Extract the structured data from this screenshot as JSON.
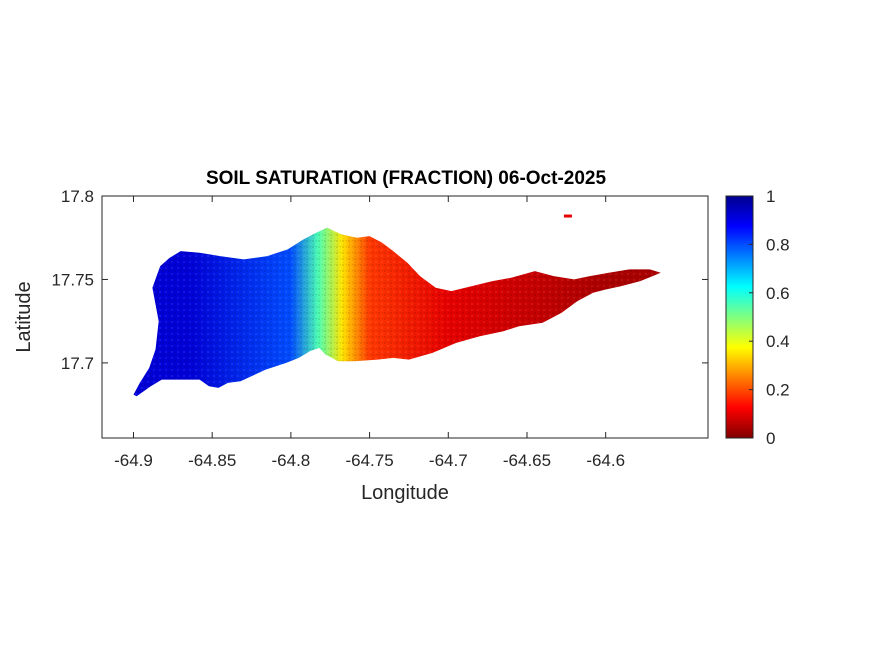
{
  "map": {
    "title": "SOIL SATURATION (FRACTION) 06-Oct-2025",
    "xlabel": "Longitude",
    "ylabel": "Latitude",
    "x_range": [
      -64.92,
      -64.535
    ],
    "y_range": [
      17.655,
      17.8
    ],
    "x_ticks": [
      {
        "value": -64.9,
        "label": "-64.9"
      },
      {
        "value": -64.85,
        "label": "-64.85"
      },
      {
        "value": -64.8,
        "label": "-64.8"
      },
      {
        "value": -64.75,
        "label": "-64.75"
      },
      {
        "value": -64.7,
        "label": "-64.7"
      },
      {
        "value": -64.65,
        "label": "-64.65"
      },
      {
        "value": -64.6,
        "label": "-64.6"
      }
    ],
    "y_ticks": [
      {
        "value": 17.7,
        "label": "17.7"
      },
      {
        "value": 17.75,
        "label": "17.75"
      },
      {
        "value": 17.8,
        "label": "17.8"
      }
    ],
    "colormap": "jet",
    "colorbar": {
      "range": [
        0,
        1
      ],
      "ticks": [
        {
          "value": 0,
          "label": "0"
        },
        {
          "value": 0.2,
          "label": "0.2"
        },
        {
          "value": 0.4,
          "label": "0.4"
        },
        {
          "value": 0.6,
          "label": "0.6"
        },
        {
          "value": 0.8,
          "label": "0.8"
        },
        {
          "value": 1,
          "label": "1"
        }
      ]
    },
    "island_outline_lonlat": [
      [
        -64.898,
        17.68
      ],
      [
        -64.889,
        17.686
      ],
      [
        -64.882,
        17.69
      ],
      [
        -64.858,
        17.69
      ],
      [
        -64.852,
        17.686
      ],
      [
        -64.846,
        17.685
      ],
      [
        -64.84,
        17.688
      ],
      [
        -64.832,
        17.689
      ],
      [
        -64.816,
        17.696
      ],
      [
        -64.803,
        17.7
      ],
      [
        -64.795,
        17.703
      ],
      [
        -64.788,
        17.707
      ],
      [
        -64.782,
        17.709
      ],
      [
        -64.778,
        17.705
      ],
      [
        -64.774,
        17.703
      ],
      [
        -64.77,
        17.701
      ],
      [
        -64.76,
        17.701
      ],
      [
        -64.745,
        17.702
      ],
      [
        -64.735,
        17.703
      ],
      [
        -64.725,
        17.702
      ],
      [
        -64.71,
        17.706
      ],
      [
        -64.695,
        17.712
      ],
      [
        -64.68,
        17.716
      ],
      [
        -64.665,
        17.719
      ],
      [
        -64.655,
        17.722
      ],
      [
        -64.64,
        17.724
      ],
      [
        -64.628,
        17.73
      ],
      [
        -64.618,
        17.737
      ],
      [
        -64.608,
        17.742
      ],
      [
        -64.6,
        17.744
      ],
      [
        -64.59,
        17.746
      ],
      [
        -64.578,
        17.749
      ],
      [
        -64.565,
        17.754
      ],
      [
        -64.572,
        17.756
      ],
      [
        -64.585,
        17.756
      ],
      [
        -64.598,
        17.754
      ],
      [
        -64.61,
        17.752
      ],
      [
        -64.62,
        17.75
      ],
      [
        -64.633,
        17.752
      ],
      [
        -64.645,
        17.755
      ],
      [
        -64.66,
        17.751
      ],
      [
        -64.672,
        17.749
      ],
      [
        -64.685,
        17.746
      ],
      [
        -64.698,
        17.743
      ],
      [
        -64.708,
        17.745
      ],
      [
        -64.718,
        17.752
      ],
      [
        -64.726,
        17.76
      ],
      [
        -64.735,
        17.767
      ],
      [
        -64.742,
        17.772
      ],
      [
        -64.75,
        17.776
      ],
      [
        -64.758,
        17.775
      ],
      [
        -64.768,
        17.777
      ],
      [
        -64.777,
        17.781
      ],
      [
        -64.784,
        17.778
      ],
      [
        -64.792,
        17.774
      ],
      [
        -64.802,
        17.768
      ],
      [
        -64.815,
        17.764
      ],
      [
        -64.83,
        17.762
      ],
      [
        -64.845,
        17.764
      ],
      [
        -64.858,
        17.766
      ],
      [
        -64.87,
        17.767
      ],
      [
        -64.877,
        17.763
      ],
      [
        -64.883,
        17.758
      ],
      [
        -64.888,
        17.745
      ],
      [
        -64.884,
        17.725
      ],
      [
        -64.886,
        17.708
      ],
      [
        -64.89,
        17.697
      ],
      [
        -64.896,
        17.688
      ],
      [
        -64.9,
        17.681
      ]
    ],
    "saturation_zones_lon": [
      {
        "lon_from": -64.92,
        "lon_to": -64.81,
        "value": 0.92
      },
      {
        "lon_from": -64.81,
        "lon_to": -64.79,
        "value": 0.8
      },
      {
        "lon_from": -64.79,
        "lon_to": -64.775,
        "value": 0.55
      },
      {
        "lon_from": -64.775,
        "lon_to": -64.76,
        "value": 0.35
      },
      {
        "lon_from": -64.76,
        "lon_to": -64.74,
        "value": 0.18
      },
      {
        "lon_from": -64.74,
        "lon_to": -64.66,
        "value": 0.1
      },
      {
        "lon_from": -64.66,
        "lon_to": -64.535,
        "value": 0.04
      }
    ],
    "outlier_points": [
      {
        "lon": -64.624,
        "lat": 17.788,
        "value": 0.1
      }
    ]
  }
}
